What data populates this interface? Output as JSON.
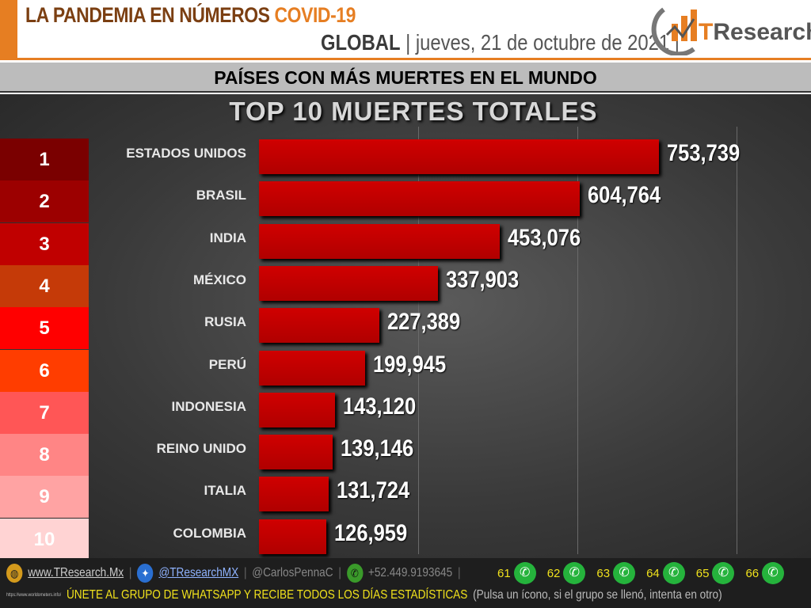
{
  "header": {
    "title": "LA PANDEMIA EN NÚMEROS",
    "title_accent": "COVID-19",
    "region": "GLOBAL",
    "date": "| jueves, 21 de octubre de 2021 |",
    "logo_text": "TResearch"
  },
  "subtitle": "PAÍSES CON MÁS MUERTES EN EL MUNDO",
  "chart_data": {
    "type": "bar",
    "orientation": "horizontal",
    "title": "TOP 10 MUERTES TOTALES",
    "categories": [
      "ESTADOS UNIDOS",
      "BRASIL",
      "INDIA",
      "MÉXICO",
      "RUSIA",
      "PERÚ",
      "INDONESIA",
      "REINO UNIDO",
      "ITALIA",
      "COLOMBIA"
    ],
    "values": [
      753739,
      604764,
      453076,
      337903,
      227389,
      199945,
      143120,
      139146,
      131724,
      126959
    ],
    "labels": [
      "753,739",
      "604,764",
      "453,076",
      "337,903",
      "227,389",
      "199,945",
      "143,120",
      "139,146",
      "131,724",
      "126,959"
    ],
    "ranks": [
      "1",
      "2",
      "3",
      "4",
      "5",
      "6",
      "7",
      "8",
      "9",
      "10"
    ],
    "rank_colors": [
      "#7a0000",
      "#9c0000",
      "#c00000",
      "#c53a08",
      "#ff0000",
      "#ff3d00",
      "#ff5656",
      "#ff8585",
      "#ffa3a3",
      "#ffd3d3"
    ],
    "bar_color": "#c00000",
    "xlim": [
      0,
      900000
    ],
    "grid": true,
    "gridlines": [
      300000,
      600000,
      900000
    ]
  },
  "footer": {
    "website": "www.TResearch.Mx",
    "twitter": "@TResearchMX",
    "twitter2": "@CarlosPennaC",
    "phone": "+52.449.9193645",
    "source": "https://www.worldometers.info/",
    "groups": [
      "61",
      "62",
      "63",
      "64",
      "65",
      "66"
    ],
    "cta": "ÚNETE AL GRUPO DE WHATSAPP Y RECIBE TODOS LOS DÍAS ESTADÍSTICAS",
    "cta_note": "(Pulsa un ícono, si el grupo se llenó, intenta en otro)",
    "colors": {
      "cta": "#f1e21c",
      "whatsapp": "#25b33c"
    }
  }
}
